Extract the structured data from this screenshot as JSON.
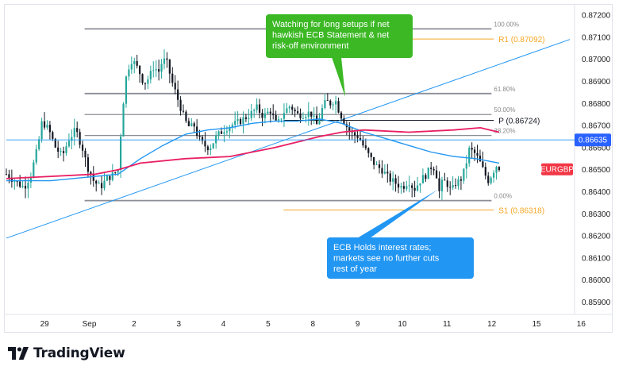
{
  "brand": {
    "name": "TradingView",
    "logo_icon": "tradingview-logo-icon"
  },
  "symbol_badge": "EURGBP",
  "current_price_label": "0.86635",
  "chart_data": {
    "type": "candlestick",
    "symbol": "EURGBP",
    "y_range": [
      0.8585,
      0.8725
    ],
    "y_ticks": [
      "0.87200",
      "0.87100",
      "0.87000",
      "0.86900",
      "0.86800",
      "0.86700",
      "0.86600",
      "0.86500",
      "0.86400",
      "0.86300",
      "0.86200",
      "0.86100",
      "0.86000",
      "0.85900"
    ],
    "y_tick_values": [
      0.872,
      0.871,
      0.87,
      0.869,
      0.868,
      0.867,
      0.866,
      0.865,
      0.864,
      0.863,
      0.862,
      0.861,
      0.86,
      0.859
    ],
    "x_ticks": [
      {
        "label": "29",
        "t": 0.5
      },
      {
        "label": "Sep",
        "t": 1.5
      },
      {
        "label": "2",
        "t": 2.5
      },
      {
        "label": "3",
        "t": 3.5
      },
      {
        "label": "4",
        "t": 4.5
      },
      {
        "label": "5",
        "t": 5.5
      },
      {
        "label": "8",
        "t": 6.5
      },
      {
        "label": "9",
        "t": 7.5
      },
      {
        "label": "10",
        "t": 8.5
      },
      {
        "label": "11",
        "t": 9.5
      },
      {
        "label": "12",
        "t": 10.5
      },
      {
        "label": "15",
        "t": 11.5
      },
      {
        "label": "16",
        "t": 12.5
      }
    ],
    "price_path": [
      [
        0.0,
        0.8648
      ],
      [
        0.12,
        0.8646
      ],
      [
        0.25,
        0.8644
      ],
      [
        0.4,
        0.8642
      ],
      [
        0.55,
        0.8648
      ],
      [
        0.7,
        0.866
      ],
      [
        0.8,
        0.8672
      ],
      [
        0.95,
        0.8668
      ],
      [
        1.1,
        0.866
      ],
      [
        1.25,
        0.8656
      ],
      [
        1.4,
        0.8664
      ],
      [
        1.55,
        0.8668
      ],
      [
        1.7,
        0.866
      ],
      [
        1.8,
        0.8652
      ],
      [
        1.95,
        0.8645
      ],
      [
        2.1,
        0.8642
      ],
      [
        2.25,
        0.8646
      ],
      [
        2.4,
        0.8648
      ],
      [
        2.5,
        0.865
      ],
      [
        2.6,
        0.8678
      ],
      [
        2.68,
        0.8692
      ],
      [
        2.78,
        0.87
      ],
      [
        2.88,
        0.8698
      ],
      [
        2.98,
        0.8694
      ],
      [
        3.08,
        0.8689
      ],
      [
        3.2,
        0.8692
      ],
      [
        3.3,
        0.8697
      ],
      [
        3.4,
        0.8694
      ],
      [
        3.5,
        0.87
      ],
      [
        3.6,
        0.8698
      ],
      [
        3.7,
        0.869
      ],
      [
        3.8,
        0.8684
      ],
      [
        3.9,
        0.8678
      ],
      [
        4.0,
        0.8672
      ],
      [
        4.1,
        0.8669
      ],
      [
        4.2,
        0.867
      ],
      [
        4.3,
        0.8664
      ],
      [
        4.42,
        0.8661
      ],
      [
        4.55,
        0.866
      ],
      [
        4.7,
        0.8665
      ],
      [
        4.85,
        0.8668
      ],
      [
        5.0,
        0.867
      ],
      [
        5.15,
        0.8671
      ],
      [
        5.3,
        0.8673
      ],
      [
        5.45,
        0.8675
      ],
      [
        5.6,
        0.8678
      ],
      [
        5.75,
        0.8674
      ],
      [
        5.9,
        0.8677
      ],
      [
        6.05,
        0.867
      ],
      [
        6.2,
        0.8676
      ],
      [
        6.35,
        0.8679
      ],
      [
        6.5,
        0.8675
      ],
      [
        6.65,
        0.8675
      ],
      [
        6.8,
        0.8676
      ],
      [
        6.95,
        0.867
      ],
      [
        7.05,
        0.8677
      ],
      [
        7.15,
        0.8681
      ],
      [
        7.25,
        0.868
      ],
      [
        7.35,
        0.8682
      ],
      [
        7.45,
        0.8676
      ],
      [
        7.55,
        0.8672
      ],
      [
        7.65,
        0.8668
      ],
      [
        7.75,
        0.8666
      ],
      [
        7.88,
        0.8665
      ],
      [
        8.0,
        0.866
      ],
      [
        8.12,
        0.8656
      ],
      [
        8.25,
        0.8652
      ],
      [
        8.4,
        0.865
      ],
      [
        8.55,
        0.8646
      ],
      [
        8.7,
        0.8644
      ],
      [
        8.85,
        0.8642
      ],
      [
        9.0,
        0.8645
      ],
      [
        9.12,
        0.8641
      ],
      [
        9.25,
        0.8645
      ],
      [
        9.4,
        0.8648
      ],
      [
        9.52,
        0.8652
      ],
      [
        9.6,
        0.865
      ],
      [
        9.68,
        0.864
      ],
      [
        9.76,
        0.8645
      ],
      [
        9.85,
        0.8644
      ],
      [
        9.95,
        0.864
      ],
      [
        10.05,
        0.8644
      ],
      [
        10.15,
        0.8645
      ],
      [
        10.25,
        0.865
      ],
      [
        10.35,
        0.8659
      ],
      [
        10.45,
        0.8658
      ],
      [
        10.55,
        0.8655
      ],
      [
        10.62,
        0.8652
      ],
      [
        10.7,
        0.8648
      ],
      [
        10.78,
        0.8645
      ],
      [
        10.88,
        0.8649
      ],
      [
        10.95,
        0.8652
      ],
      [
        11.02,
        0.8651
      ]
    ],
    "sma_blue": [
      [
        0,
        0.8645
      ],
      [
        1,
        0.8645
      ],
      [
        2,
        0.8647
      ],
      [
        2.5,
        0.8648
      ],
      [
        3,
        0.8655
      ],
      [
        3.5,
        0.8661
      ],
      [
        4,
        0.8666
      ],
      [
        4.5,
        0.8668
      ],
      [
        5,
        0.8669
      ],
      [
        5.5,
        0.8671
      ],
      [
        6,
        0.8672
      ],
      [
        6.5,
        0.8672
      ],
      [
        7,
        0.8673
      ],
      [
        7.5,
        0.8671
      ],
      [
        8,
        0.8667
      ],
      [
        8.5,
        0.8664
      ],
      [
        9,
        0.8661
      ],
      [
        9.5,
        0.8658
      ],
      [
        10,
        0.8656
      ],
      [
        10.5,
        0.8655
      ],
      [
        11.02,
        0.8653
      ]
    ],
    "sma_pink": [
      [
        0,
        0.8646
      ],
      [
        1,
        0.8647
      ],
      [
        2,
        0.8648
      ],
      [
        2.5,
        0.865
      ],
      [
        3,
        0.8653
      ],
      [
        4,
        0.8655
      ],
      [
        5,
        0.8656
      ],
      [
        6,
        0.866
      ],
      [
        7,
        0.8665
      ],
      [
        7.5,
        0.8667
      ],
      [
        8,
        0.8668
      ],
      [
        9,
        0.8667
      ],
      [
        10,
        0.8668
      ],
      [
        10.6,
        0.8669
      ],
      [
        11.02,
        0.8667
      ]
    ],
    "trendline": [
      [
        0.0,
        0.8619
      ],
      [
        12.6,
        0.8709
      ]
    ],
    "current_price_line": 0.86635,
    "fibonacci": [
      {
        "label": "100.00%",
        "price": 0.87138
      },
      {
        "label": "61.80%",
        "price": 0.86845
      },
      {
        "label": "50.00%",
        "price": 0.8675
      },
      {
        "label": "38.20%",
        "price": 0.86655
      },
      {
        "label": "0.00%",
        "price": 0.8636
      }
    ],
    "fib_t_range": [
      1.75,
      10.85
    ],
    "pivots": [
      {
        "label": "R1 (0.87092)",
        "price": 0.87092,
        "color": "#f5a623"
      },
      {
        "label": "P (0.86724)",
        "price": 0.86724,
        "color": "#131722"
      },
      {
        "label": "S1 (0.86318)",
        "price": 0.86318,
        "color": "#f5a623"
      }
    ],
    "pivot_t_range": [
      6.2,
      10.9
    ],
    "annotations": [
      {
        "text": [
          "Watching for long setups if net",
          "hawkish ECB Statement & net",
          "risk-off environment"
        ],
        "color": "#3cb825"
      },
      {
        "text": [
          "ECB Holds interest rates;",
          "markets see no further cuts",
          "rest of year"
        ],
        "color": "#2196f3"
      }
    ]
  },
  "colors": {
    "up": "#26a69a",
    "down": "#131722",
    "sma_blue": "#2196f3",
    "sma_pink": "#e91e63",
    "trendline": "#2196f3",
    "fib": "#787b86",
    "callout_green": "#3cb825",
    "callout_blue": "#2196f3",
    "badge_red": "#f23645",
    "badge_blue": "#2962ff"
  }
}
